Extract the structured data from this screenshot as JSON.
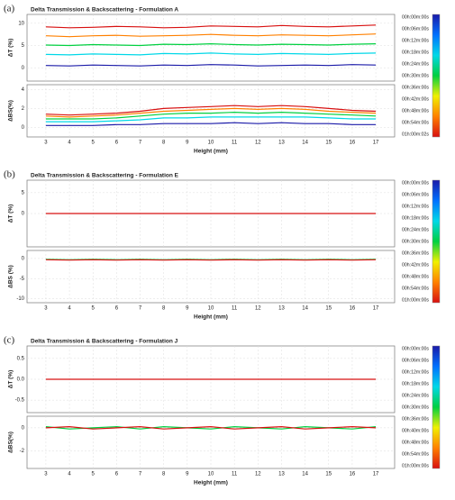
{
  "chart_data": [
    {
      "type": "line",
      "panel_label": "(a)",
      "title": "Delta Transmission & Backscattering - Formulation A",
      "xlabel": "Height (mm)",
      "x": [
        3,
        4,
        5,
        6,
        7,
        8,
        9,
        10,
        11,
        12,
        13,
        14,
        15,
        16,
        17
      ],
      "xlim": [
        2.2,
        17.8
      ],
      "xticks": [
        3,
        4,
        5,
        6,
        7,
        8,
        9,
        10,
        11,
        12,
        13,
        14,
        15,
        16,
        17
      ],
      "grid": true,
      "colorbar_colors": [
        "#1a1aa8",
        "#0070ff",
        "#00d8e8",
        "#00d040",
        "#f0f000",
        "#ff8000",
        "#d81010"
      ],
      "colorbar_labels": [
        "00h:00m:00s",
        "00h:06m:00s",
        "00h:12m:00s",
        "00h:18m:00s",
        "00h:24m:00s",
        "00h:30m:00s",
        "00h:36m:00s",
        "00h:42m:00s",
        "00h:48m:00s",
        "00h:54m:00s",
        "01h:00m:02s"
      ],
      "subplots": [
        {
          "ylabel": "ΔT (%)",
          "ylim": [
            -3,
            12
          ],
          "yticks": [
            0,
            5,
            10
          ],
          "series": [
            {
              "color": "#1a1aa8",
              "values": [
                0.5,
                0.4,
                0.6,
                0.5,
                0.4,
                0.6,
                0.5,
                0.7,
                0.6,
                0.4,
                0.5,
                0.6,
                0.5,
                0.7,
                0.6
              ]
            },
            {
              "color": "#00d8e8",
              "values": [
                3.0,
                2.9,
                3.1,
                3.0,
                2.9,
                3.2,
                3.1,
                3.3,
                3.1,
                3.0,
                3.2,
                3.1,
                3.0,
                3.2,
                3.3
              ]
            },
            {
              "color": "#00d040",
              "values": [
                5.1,
                5.0,
                5.2,
                5.1,
                5.0,
                5.3,
                5.2,
                5.4,
                5.2,
                5.1,
                5.3,
                5.2,
                5.1,
                5.3,
                5.4
              ]
            },
            {
              "color": "#ff8000",
              "values": [
                7.2,
                7.0,
                7.2,
                7.3,
                7.1,
                7.2,
                7.3,
                7.5,
                7.3,
                7.2,
                7.4,
                7.3,
                7.2,
                7.4,
                7.6
              ]
            },
            {
              "color": "#d81010",
              "values": [
                9.2,
                9.0,
                9.1,
                9.3,
                9.2,
                9.0,
                9.1,
                9.4,
                9.3,
                9.2,
                9.5,
                9.3,
                9.2,
                9.4,
                9.6
              ]
            }
          ]
        },
        {
          "ylabel": "ΔBS(%)",
          "ylim": [
            -1,
            4.5
          ],
          "yticks": [
            0,
            2,
            4
          ],
          "series": [
            {
              "color": "#1a1aa8",
              "values": [
                0.2,
                0.2,
                0.2,
                0.3,
                0.3,
                0.4,
                0.4,
                0.4,
                0.5,
                0.4,
                0.5,
                0.4,
                0.4,
                0.3,
                0.3
              ]
            },
            {
              "color": "#00d8e8",
              "values": [
                0.6,
                0.6,
                0.6,
                0.7,
                0.8,
                1.0,
                1.0,
                1.1,
                1.1,
                1.1,
                1.1,
                1.1,
                1.0,
                0.9,
                0.9
              ]
            },
            {
              "color": "#00d040",
              "values": [
                0.9,
                0.9,
                0.9,
                1.0,
                1.2,
                1.4,
                1.5,
                1.5,
                1.6,
                1.5,
                1.6,
                1.5,
                1.4,
                1.3,
                1.2
              ]
            },
            {
              "color": "#ff8000",
              "values": [
                1.2,
                1.1,
                1.2,
                1.3,
                1.5,
                1.7,
                1.8,
                1.9,
                2.0,
                1.9,
                2.0,
                1.9,
                1.7,
                1.6,
                1.5
              ]
            },
            {
              "color": "#d81010",
              "values": [
                1.4,
                1.3,
                1.4,
                1.5,
                1.7,
                2.0,
                2.1,
                2.2,
                2.3,
                2.2,
                2.3,
                2.2,
                2.0,
                1.8,
                1.7
              ]
            }
          ]
        }
      ]
    },
    {
      "type": "line",
      "panel_label": "(b)",
      "title": "Delta Transmission & Backscattering - Formulation E",
      "xlabel": "Height (mm)",
      "x": [
        3,
        4,
        5,
        6,
        7,
        8,
        9,
        10,
        11,
        12,
        13,
        14,
        15,
        16,
        17
      ],
      "xlim": [
        2.2,
        17.8
      ],
      "xticks": [
        3,
        4,
        5,
        6,
        7,
        8,
        9,
        10,
        11,
        12,
        13,
        14,
        15,
        16,
        17
      ],
      "grid": true,
      "colorbar_colors": [
        "#1a1aa8",
        "#0070ff",
        "#00d8e8",
        "#00d040",
        "#f0f000",
        "#ff8000",
        "#d81010"
      ],
      "colorbar_labels": [
        "00h:00m:00s",
        "00h:06m:00s",
        "00h:12m:00s",
        "00h:18m:00s",
        "00h:24m:00s",
        "00h:30m:00s",
        "00h:36m:00s",
        "00h:42m:00s",
        "00h:48m:00s",
        "00h:54m:00s",
        "01h:00m:00s"
      ],
      "subplots": [
        {
          "ylabel": "ΔT (%)",
          "ylim": [
            -8,
            8
          ],
          "yticks": [
            0,
            5
          ],
          "series": [
            {
              "color": "#d81010",
              "values": [
                0,
                0,
                0,
                0,
                0,
                0,
                0,
                0,
                0,
                0,
                0,
                0,
                0,
                0,
                0
              ]
            }
          ]
        },
        {
          "ylabel": "ΔBS (%)",
          "ylim": [
            -11,
            2
          ],
          "yticks": [
            -10,
            -5,
            0
          ],
          "series": [
            {
              "color": "#00d040",
              "values": [
                -0.2,
                -0.3,
                -0.2,
                -0.3,
                -0.2,
                -0.3,
                -0.2,
                -0.3,
                -0.2,
                -0.3,
                -0.2,
                -0.3,
                -0.2,
                -0.3,
                -0.2
              ]
            },
            {
              "color": "#d81010",
              "values": [
                -0.3,
                -0.4,
                -0.3,
                -0.4,
                -0.3,
                -0.4,
                -0.3,
                -0.4,
                -0.3,
                -0.4,
                -0.3,
                -0.4,
                -0.3,
                -0.4,
                -0.3
              ]
            }
          ]
        }
      ]
    },
    {
      "type": "line",
      "panel_label": "(c)",
      "title": "Delta Transmission & Backscattering - Formulation J",
      "xlabel": "Height (mm)",
      "x": [
        3,
        4,
        5,
        6,
        7,
        8,
        9,
        10,
        11,
        12,
        13,
        14,
        15,
        16,
        17
      ],
      "xlim": [
        2.2,
        17.8
      ],
      "xticks": [
        3,
        4,
        5,
        6,
        7,
        8,
        9,
        10,
        11,
        12,
        13,
        14,
        15,
        16,
        17
      ],
      "grid": true,
      "colorbar_colors": [
        "#1a1aa8",
        "#0070ff",
        "#00d8e8",
        "#00d040",
        "#f0f000",
        "#ff8000",
        "#d81010"
      ],
      "colorbar_labels": [
        "00h:00m:00s",
        "00h:06m:00s",
        "00h:12m:00s",
        "00h:18m:00s",
        "00h:24m:00s",
        "00h:30m:00s",
        "00h:36m:00s",
        "00h:40m:00s",
        "00h:48m:00s",
        "00h:54m:00s",
        "01h:00m:00s"
      ],
      "subplots": [
        {
          "ylabel": "ΔT (%)",
          "ylim": [
            -0.8,
            0.8
          ],
          "yticks": [
            -0.5,
            {
              "value": 0,
              "label": "0.0"
            },
            0.5
          ],
          "series": [
            {
              "color": "#d81010",
              "values": [
                0,
                0,
                0,
                0,
                0,
                0,
                0,
                0,
                0,
                0,
                0,
                0,
                0,
                0,
                0
              ]
            }
          ]
        },
        {
          "ylabel": "ΔBS(%)",
          "ylim": [
            -3.5,
            1
          ],
          "yticks": [
            -2,
            0
          ],
          "series": [
            {
              "color": "#00d040",
              "values": [
                0.1,
                -0.1,
                0.0,
                0.1,
                -0.1,
                0.1,
                0.0,
                -0.1,
                0.1,
                0.0,
                -0.1,
                0.1,
                0.0,
                -0.1,
                0.1
              ]
            },
            {
              "color": "#d81010",
              "values": [
                0.0,
                0.1,
                -0.1,
                0.0,
                0.1,
                -0.1,
                0.0,
                0.1,
                -0.1,
                0.0,
                0.1,
                -0.1,
                0.0,
                0.1,
                0.0
              ]
            }
          ]
        }
      ]
    }
  ]
}
